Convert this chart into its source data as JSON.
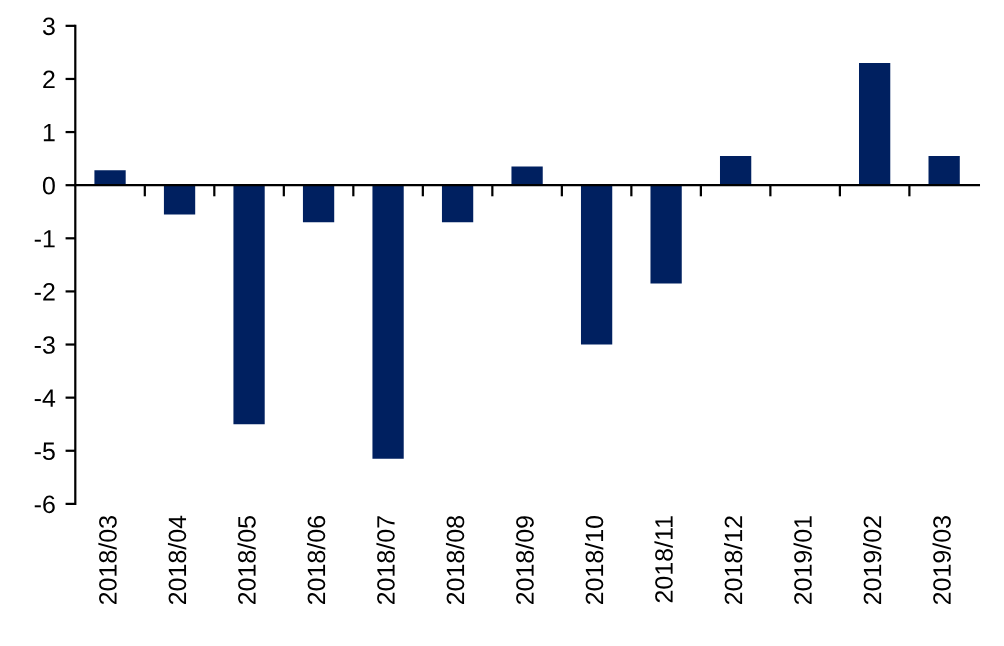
{
  "chart_data": {
    "type": "bar",
    "categories": [
      "2018/03",
      "2018/04",
      "2018/05",
      "2018/06",
      "2018/07",
      "2018/08",
      "2018/09",
      "2018/10",
      "2018/11",
      "2018/12",
      "2019/01",
      "2019/02",
      "2019/03"
    ],
    "values": [
      0.28,
      -0.55,
      -4.5,
      -0.7,
      -5.15,
      -0.7,
      0.35,
      -3.0,
      -1.85,
      0.55,
      0,
      2.3,
      0.55
    ],
    "color": "#002060",
    "ylim": [
      -6,
      3
    ],
    "yticks": [
      -6,
      -5,
      -4,
      -3,
      -2,
      -1,
      0,
      1,
      2,
      3
    ]
  }
}
